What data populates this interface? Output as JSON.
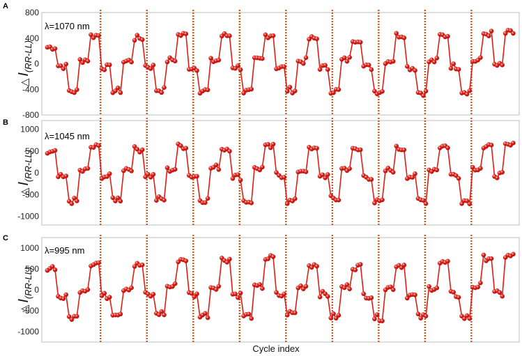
{
  "figure": {
    "xlabel": "Cycle index"
  },
  "chart_data": [
    {
      "type": "scatter",
      "panel": "A",
      "annotation": "λ=1070 nm",
      "ylabel": {
        "symbol": "△",
        "main": "I",
        "subscript": "(RR-LL)"
      },
      "xlabel": "Cycle index",
      "ylim": [
        -800,
        800
      ],
      "yticks": [
        800,
        400,
        0,
        -400,
        -800
      ],
      "xlim": [
        0,
        43
      ],
      "period_boundaries": [
        5,
        9.25,
        13.5,
        17.75,
        22,
        26.25,
        30.5,
        34.75,
        39
      ],
      "levels": [
        [
          0,
          260,
          0.0
        ],
        [
          1,
          -35,
          0.0
        ],
        [
          2,
          -430,
          0.0
        ],
        [
          3,
          60,
          0.0
        ],
        [
          4,
          440,
          0.0
        ],
        [
          5,
          -55,
          0.0
        ],
        [
          6,
          -420,
          0.0
        ],
        [
          7,
          40,
          0.0
        ],
        [
          8,
          400,
          0.0
        ],
        [
          9,
          -40,
          0.0
        ],
        [
          10,
          -410,
          0.0
        ],
        [
          11,
          60,
          0.0
        ],
        [
          12,
          450,
          0.0
        ],
        [
          13,
          -60,
          0.0
        ],
        [
          14,
          -420,
          0.0
        ],
        [
          15,
          50,
          0.0
        ],
        [
          16,
          440,
          0.0
        ],
        [
          17,
          -50,
          0.0
        ],
        [
          18,
          -440,
          0.0
        ],
        [
          19,
          60,
          0.0
        ],
        [
          20,
          450,
          0.0
        ],
        [
          21,
          -60,
          0.0
        ],
        [
          22,
          -410,
          0.0
        ],
        [
          23,
          40,
          0.0
        ],
        [
          24,
          390,
          0.0
        ],
        [
          25,
          -60,
          0.0
        ],
        [
          26,
          -420,
          0.0
        ],
        [
          27,
          60,
          0.0
        ],
        [
          28,
          380,
          0.0
        ],
        [
          29,
          -50,
          0.0
        ],
        [
          30,
          -430,
          0.0
        ],
        [
          31,
          50,
          0.0
        ],
        [
          32,
          450,
          0.0
        ],
        [
          33,
          -60,
          0.0
        ],
        [
          34,
          -450,
          0.0
        ],
        [
          35,
          40,
          0.0
        ],
        [
          36,
          440,
          0.0
        ],
        [
          37,
          -40,
          0.0
        ],
        [
          38,
          -430,
          0.0
        ],
        [
          39,
          50,
          0.0
        ],
        [
          40,
          470,
          0.0
        ],
        [
          41,
          -30,
          0.0
        ],
        [
          42,
          480,
          0.0
        ]
      ]
    },
    {
      "type": "scatter",
      "panel": "B",
      "annotation": "λ=1045 nm",
      "ylabel": {
        "symbol": "△",
        "main": "I",
        "subscript": "(RR-LL)"
      },
      "xlabel": "Cycle index",
      "ylim": [
        -1200,
        1200
      ],
      "yticks": [
        1000,
        500,
        0,
        -500,
        -1000
      ],
      "xlim": [
        0,
        43
      ],
      "period_boundaries": [
        5,
        9.25,
        13.5,
        17.75,
        22,
        26.25,
        30.5,
        34.75,
        39
      ],
      "levels": [
        [
          0,
          450,
          0.0
        ],
        [
          1,
          -110,
          0.0
        ],
        [
          2,
          -650,
          0.0
        ],
        [
          3,
          50,
          0.0
        ],
        [
          4,
          590,
          0.0
        ],
        [
          5,
          -80,
          0.0
        ],
        [
          6,
          -600,
          0.0
        ],
        [
          7,
          100,
          0.0
        ],
        [
          8,
          540,
          0.0
        ],
        [
          9,
          -60,
          0.0
        ],
        [
          10,
          -610,
          0.0
        ],
        [
          11,
          80,
          0.0
        ],
        [
          12,
          610,
          0.0
        ],
        [
          13,
          -70,
          0.0
        ],
        [
          14,
          -620,
          0.0
        ],
        [
          15,
          120,
          0.0
        ],
        [
          16,
          560,
          0.0
        ],
        [
          17,
          -90,
          0.0
        ],
        [
          18,
          -650,
          0.0
        ],
        [
          19,
          100,
          0.0
        ],
        [
          20,
          590,
          0.0
        ],
        [
          21,
          -50,
          0.0
        ],
        [
          22,
          -660,
          0.0
        ],
        [
          23,
          60,
          0.0
        ],
        [
          24,
          530,
          0.0
        ],
        [
          25,
          -60,
          0.0
        ],
        [
          26,
          -600,
          0.0
        ],
        [
          27,
          100,
          0.0
        ],
        [
          28,
          520,
          0.0
        ],
        [
          29,
          -90,
          0.0
        ],
        [
          30,
          -680,
          0.0
        ],
        [
          31,
          60,
          0.0
        ],
        [
          32,
          560,
          0.0
        ],
        [
          33,
          -80,
          0.0
        ],
        [
          34,
          -640,
          0.0
        ],
        [
          35,
          80,
          0.0
        ],
        [
          36,
          610,
          0.0
        ],
        [
          37,
          -60,
          0.0
        ],
        [
          38,
          -640,
          0.0
        ],
        [
          39,
          120,
          0.0
        ],
        [
          40,
          580,
          0.0
        ],
        [
          41,
          -50,
          0.0
        ],
        [
          42,
          620,
          0.0
        ]
      ]
    },
    {
      "type": "scatter",
      "panel": "C",
      "annotation": "λ=995 nm",
      "ylabel": {
        "symbol": "△",
        "main": "I",
        "subscript": "(RR-LL)"
      },
      "xlabel": "Cycle index",
      "ylim": [
        -1250,
        1250
      ],
      "yticks": [
        1000,
        500,
        0,
        -500,
        -1000
      ],
      "xlim": [
        0,
        43
      ],
      "period_boundaries": [
        5,
        9.25,
        13.5,
        17.75,
        22,
        26.25,
        30.5,
        34.75,
        39
      ],
      "levels": [
        [
          0,
          540,
          0.0
        ],
        [
          1,
          -180,
          0.0
        ],
        [
          2,
          -660,
          0.0
        ],
        [
          3,
          20,
          0.0
        ],
        [
          4,
          640,
          0.0
        ],
        [
          5,
          -150,
          0.0
        ],
        [
          6,
          -550,
          0.0
        ],
        [
          7,
          50,
          0.0
        ],
        [
          8,
          590,
          0.0
        ],
        [
          9,
          -130,
          0.0
        ],
        [
          10,
          -560,
          0.0
        ],
        [
          11,
          80,
          0.0
        ],
        [
          12,
          730,
          0.0
        ],
        [
          13,
          -120,
          0.0
        ],
        [
          14,
          -600,
          0.0
        ],
        [
          15,
          80,
          0.0
        ],
        [
          16,
          730,
          0.0
        ],
        [
          17,
          -110,
          0.0
        ],
        [
          18,
          -620,
          0.0
        ],
        [
          19,
          60,
          0.0
        ],
        [
          20,
          760,
          0.0
        ],
        [
          21,
          -130,
          0.0
        ],
        [
          22,
          -560,
          0.0
        ],
        [
          23,
          80,
          0.0
        ],
        [
          24,
          600,
          0.0
        ],
        [
          25,
          -110,
          0.0
        ],
        [
          26,
          -640,
          0.0
        ],
        [
          27,
          70,
          0.0
        ],
        [
          28,
          550,
          0.0
        ],
        [
          29,
          -130,
          0.0
        ],
        [
          30,
          -670,
          0.0
        ],
        [
          31,
          50,
          0.0
        ],
        [
          32,
          590,
          0.0
        ],
        [
          33,
          -140,
          0.0
        ],
        [
          34,
          -650,
          0.0
        ],
        [
          35,
          60,
          0.0
        ],
        [
          36,
          640,
          0.0
        ],
        [
          37,
          -120,
          0.0
        ],
        [
          38,
          -660,
          0.0
        ],
        [
          39,
          90,
          0.0
        ],
        [
          40,
          770,
          0.0
        ],
        [
          41,
          -100,
          0.0
        ],
        [
          42,
          800,
          0.0
        ]
      ]
    }
  ],
  "colors": {
    "marker_fill": "#e8251a",
    "marker_edge": "#b01010",
    "marker_highlight": "#ffd0c8",
    "line": "#e01c14",
    "boundary": "#c65a1e",
    "frame": "#bcbcbc"
  }
}
